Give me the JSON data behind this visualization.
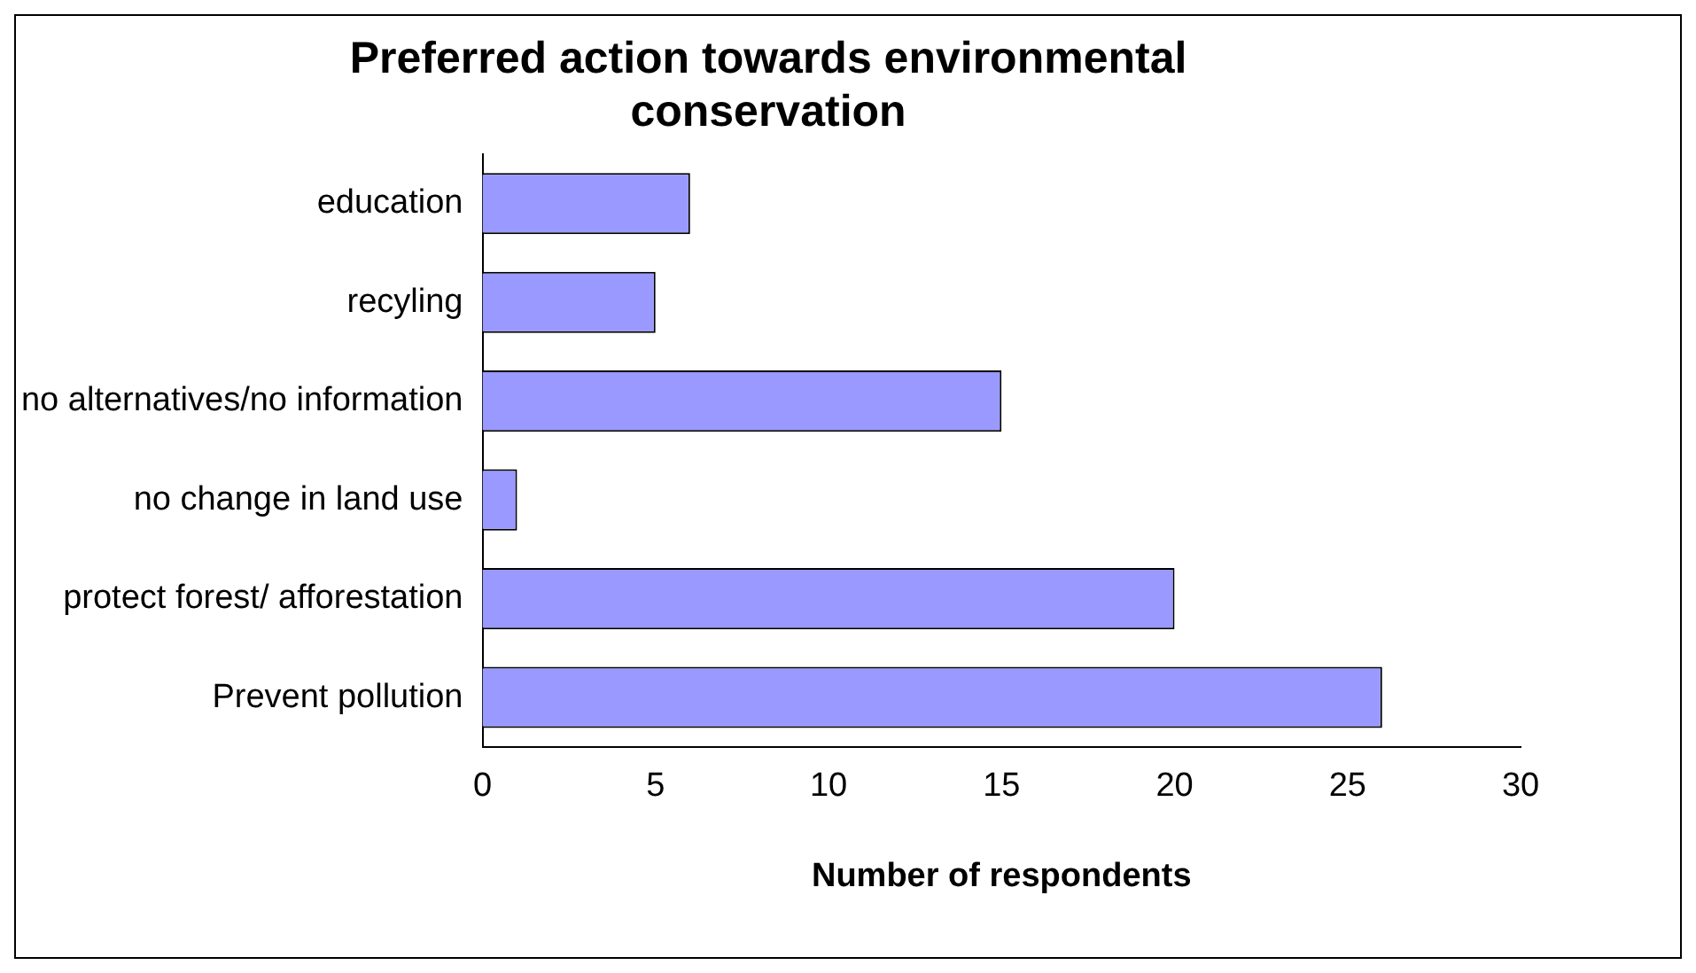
{
  "chart_data": {
    "type": "bar",
    "orientation": "horizontal",
    "title": [
      "Preferred action towards environmental",
      "conservation"
    ],
    "xlabel": "Number of respondents",
    "categories": [
      "education",
      "recyling",
      "no alternatives/no information",
      "no change in land use",
      "protect forest/ afforestation",
      "Prevent pollution"
    ],
    "values": [
      6,
      5,
      15,
      1,
      20,
      26
    ],
    "color": "#9999ff",
    "xlim": [
      0,
      30
    ],
    "xticks": [
      0,
      5,
      10,
      15,
      20,
      25,
      30
    ],
    "grid": false,
    "legend": false
  }
}
